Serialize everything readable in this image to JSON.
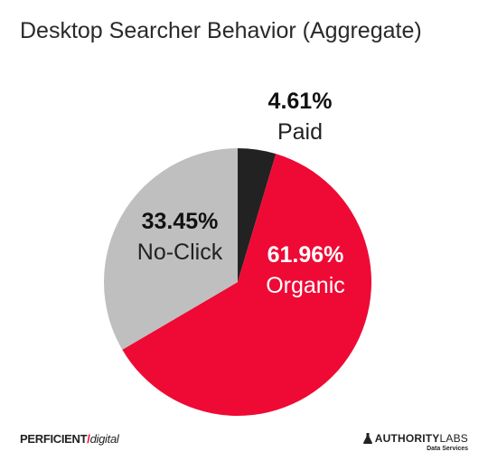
{
  "chart_data": {
    "type": "pie",
    "title": "Desktop Searcher Behavior (Aggregate)",
    "slices": [
      {
        "label": "Paid",
        "value": 4.61,
        "value_label": "4.61%",
        "color": "#222222"
      },
      {
        "label": "Organic",
        "value": 61.96,
        "value_label": "61.96%",
        "color": "#ee0a35"
      },
      {
        "label": "No-Click",
        "value": 33.45,
        "value_label": "33.45%",
        "color": "#bfbfbf"
      }
    ]
  },
  "branding": {
    "left_logo_main": "PERFICIENT",
    "left_logo_sub": "digital",
    "right_logo_main": "AUTHORITY",
    "right_logo_thin": "LABS",
    "right_logo_sub": "Data Services"
  }
}
